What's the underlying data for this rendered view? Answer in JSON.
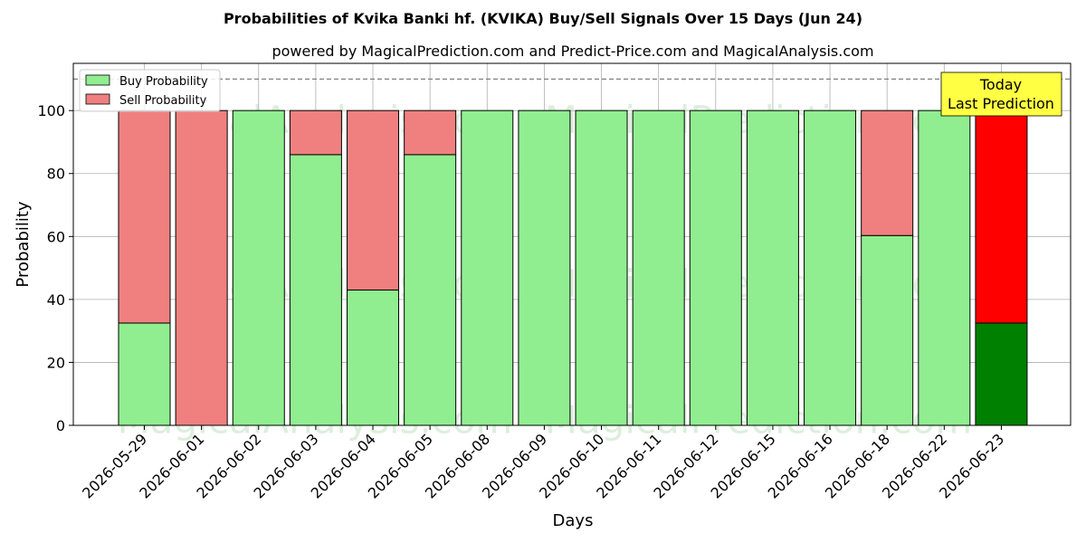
{
  "chart_data": {
    "type": "bar",
    "stacked": true,
    "title": "Probabilities of Kvika Banki hf. (KVIKA) Buy/Sell Signals Over 15 Days (Jun 24)",
    "subtitle": "powered by MagicalPrediction.com and Predict-Price.com and MagicalAnalysis.com",
    "xlabel": "Days",
    "ylabel": "Probability",
    "ylim": [
      0,
      115
    ],
    "yticks": [
      0,
      20,
      40,
      60,
      80,
      100
    ],
    "categories": [
      "2026-05-29",
      "2026-06-01",
      "2026-06-02",
      "2026-06-03",
      "2026-06-04",
      "2026-06-05",
      "2026-06-08",
      "2026-06-09",
      "2026-06-10",
      "2026-06-11",
      "2026-06-12",
      "2026-06-15",
      "2026-06-16",
      "2026-06-18",
      "2026-06-22",
      "2026-06-23"
    ],
    "series": [
      {
        "name": "Buy Probability",
        "color": "#90ee90",
        "highlight_color": "#008000",
        "values": [
          32.5,
          0,
          100,
          86,
          43,
          86,
          100,
          100,
          100,
          100,
          100,
          100,
          100,
          60.3,
          100,
          32.5
        ]
      },
      {
        "name": "Sell Probability",
        "color": "#f08080",
        "highlight_color": "#ff0000",
        "values": [
          67.5,
          100,
          0,
          14,
          57,
          14,
          0,
          0,
          0,
          0,
          0,
          0,
          0,
          39.7,
          0,
          67.5
        ]
      }
    ],
    "highlight_index": 15,
    "reference_line": {
      "value": 110,
      "style": "dashed",
      "color": "#808080"
    },
    "annotation": {
      "lines": [
        "Today",
        "Last Prediction"
      ],
      "background": "#ffff44"
    },
    "grid": true,
    "legend_position": "top-left",
    "watermarks": [
      "MagicalAnalysis.com",
      "MagicalPrediction.com"
    ]
  }
}
